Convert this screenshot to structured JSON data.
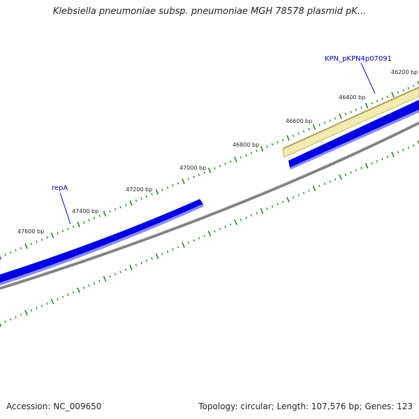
{
  "title": "Klebsiella pneumoniae subsp. pneumoniae MGH 78578 plasmid pK...",
  "accession": "Accession: NC_009650",
  "summary": "Topology: circular; Length: 107,576 bp; Genes: 123",
  "colors": {
    "backbone": "#808080",
    "gene": "#0000ee",
    "gene_highlight": "#f0e6a0",
    "tick": "#1a8a1a",
    "gene_label": "#0000aa"
  },
  "position_labels": [
    "47600 bp",
    "47400 bp",
    "47200 bp",
    "47000 bp",
    "46800 bp",
    "46600 bp",
    "46400 bp",
    "46200 bp"
  ],
  "genes": [
    {
      "name": "repA"
    },
    {
      "name": "KPN_pKPN4p07091"
    }
  ]
}
